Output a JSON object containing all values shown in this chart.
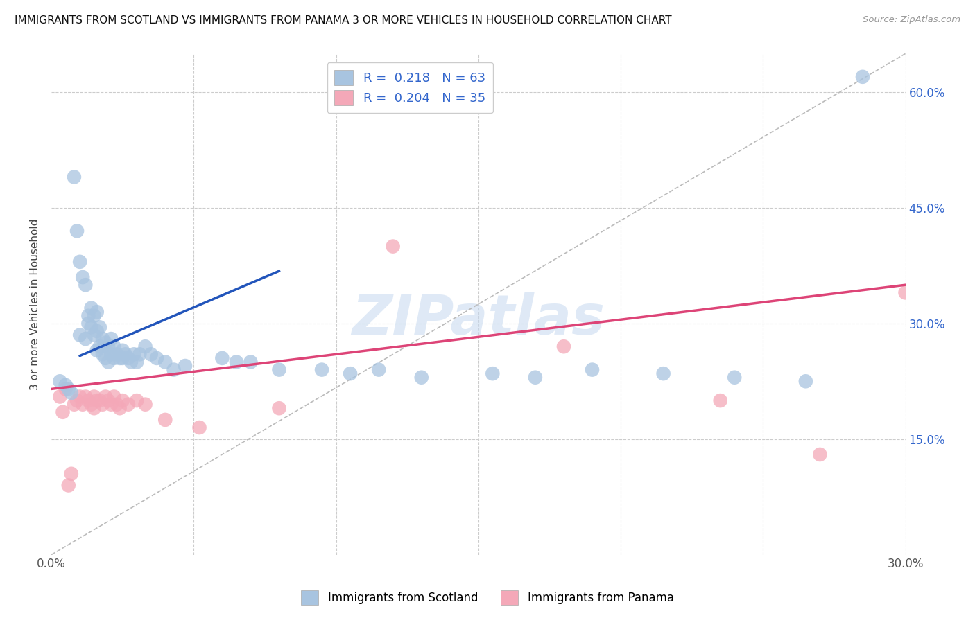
{
  "title": "IMMIGRANTS FROM SCOTLAND VS IMMIGRANTS FROM PANAMA 3 OR MORE VEHICLES IN HOUSEHOLD CORRELATION CHART",
  "source": "Source: ZipAtlas.com",
  "xlabel": "",
  "ylabel": "3 or more Vehicles in Household",
  "xlim": [
    0.0,
    0.3
  ],
  "ylim": [
    0.0,
    0.65
  ],
  "scotland_R": 0.218,
  "scotland_N": 63,
  "panama_R": 0.204,
  "panama_N": 35,
  "scotland_color": "#a8c4e0",
  "panama_color": "#f4a8b8",
  "scotland_line_color": "#2255bb",
  "panama_line_color": "#dd4477",
  "dashed_line_color": "#bbbbbb",
  "background_color": "#ffffff",
  "grid_color": "#cccccc",
  "scotland_x": [
    0.003,
    0.005,
    0.006,
    0.007,
    0.008,
    0.009,
    0.01,
    0.01,
    0.011,
    0.012,
    0.012,
    0.013,
    0.013,
    0.014,
    0.014,
    0.015,
    0.015,
    0.016,
    0.016,
    0.016,
    0.017,
    0.017,
    0.018,
    0.018,
    0.019,
    0.019,
    0.02,
    0.02,
    0.021,
    0.021,
    0.022,
    0.022,
    0.023,
    0.024,
    0.025,
    0.025,
    0.026,
    0.027,
    0.028,
    0.029,
    0.03,
    0.031,
    0.033,
    0.035,
    0.037,
    0.04,
    0.043,
    0.047,
    0.06,
    0.065,
    0.07,
    0.08,
    0.095,
    0.105,
    0.115,
    0.13,
    0.155,
    0.17,
    0.19,
    0.215,
    0.24,
    0.265,
    0.285
  ],
  "scotland_y": [
    0.225,
    0.22,
    0.215,
    0.21,
    0.49,
    0.42,
    0.38,
    0.285,
    0.36,
    0.28,
    0.35,
    0.3,
    0.31,
    0.295,
    0.32,
    0.285,
    0.31,
    0.265,
    0.29,
    0.315,
    0.27,
    0.295,
    0.26,
    0.28,
    0.255,
    0.275,
    0.25,
    0.27,
    0.26,
    0.28,
    0.255,
    0.27,
    0.26,
    0.255,
    0.255,
    0.265,
    0.26,
    0.255,
    0.25,
    0.26,
    0.25,
    0.26,
    0.27,
    0.26,
    0.255,
    0.25,
    0.24,
    0.245,
    0.255,
    0.25,
    0.25,
    0.24,
    0.24,
    0.235,
    0.24,
    0.23,
    0.235,
    0.23,
    0.24,
    0.235,
    0.23,
    0.225,
    0.62
  ],
  "panama_x": [
    0.003,
    0.004,
    0.005,
    0.006,
    0.007,
    0.008,
    0.009,
    0.01,
    0.011,
    0.012,
    0.013,
    0.014,
    0.015,
    0.015,
    0.016,
    0.017,
    0.018,
    0.019,
    0.02,
    0.021,
    0.022,
    0.023,
    0.024,
    0.025,
    0.027,
    0.03,
    0.033,
    0.04,
    0.052,
    0.08,
    0.12,
    0.18,
    0.235,
    0.27,
    0.3
  ],
  "panama_y": [
    0.205,
    0.185,
    0.215,
    0.09,
    0.105,
    0.195,
    0.2,
    0.205,
    0.195,
    0.205,
    0.2,
    0.195,
    0.205,
    0.19,
    0.2,
    0.2,
    0.195,
    0.205,
    0.2,
    0.195,
    0.205,
    0.195,
    0.19,
    0.2,
    0.195,
    0.2,
    0.195,
    0.175,
    0.165,
    0.19,
    0.4,
    0.27,
    0.2,
    0.13,
    0.34
  ],
  "scotland_line_x": [
    0.01,
    0.08
  ],
  "scotland_line_y": [
    0.258,
    0.368
  ],
  "panama_line_x": [
    0.0,
    0.3
  ],
  "panama_line_y": [
    0.215,
    0.35
  ],
  "watermark": "ZIPatlas",
  "watermark_color": "#c5d8ef"
}
